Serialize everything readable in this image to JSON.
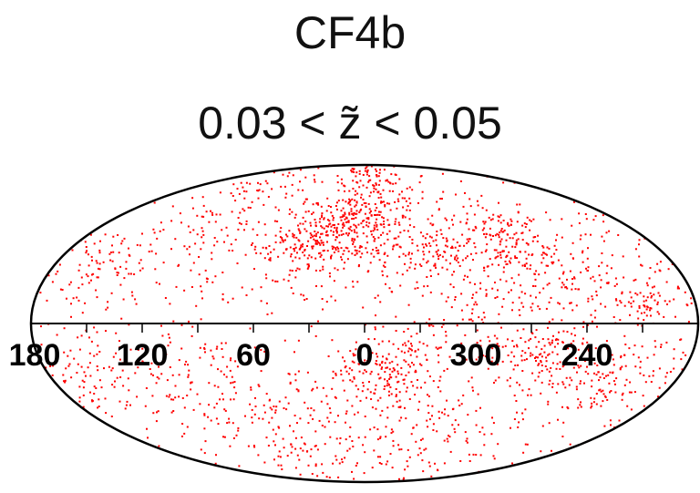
{
  "chart_data": {
    "type": "scatter",
    "projection": "mollweide",
    "title": "CF4b",
    "subtitle": "0.03 < z̃ < 0.05",
    "xlabel": "",
    "ylabel": "",
    "x_ticks": [
      "180",
      "120",
      "60",
      "0",
      "300",
      "240"
    ],
    "x_tick_values": [
      180,
      120,
      60,
      0,
      300,
      240
    ],
    "lon_range": [
      -180,
      180
    ],
    "lat_range": [
      -90,
      90
    ],
    "grid": false,
    "marker_color": "#ff0000",
    "clusters": [
      {
        "lon": 10,
        "lat": 45,
        "spread": 14,
        "count": 260
      },
      {
        "lon": 40,
        "lat": 35,
        "spread": 12,
        "count": 120
      },
      {
        "lon": -10,
        "lat": 65,
        "spread": 18,
        "count": 140
      },
      {
        "lon": -45,
        "lat": 30,
        "spread": 10,
        "count": 90
      },
      {
        "lon": -90,
        "lat": 40,
        "spread": 14,
        "count": 130
      },
      {
        "lon": -120,
        "lat": 20,
        "spread": 18,
        "count": 120
      },
      {
        "lon": -150,
        "lat": 8,
        "spread": 8,
        "count": 60
      },
      {
        "lon": 150,
        "lat": 25,
        "spread": 12,
        "count": 70
      },
      {
        "lon": 100,
        "lat": 50,
        "spread": 16,
        "count": 60
      },
      {
        "lon": -60,
        "lat": 5,
        "spread": 10,
        "count": 50
      },
      {
        "lon": -10,
        "lat": -25,
        "spread": 10,
        "count": 110
      },
      {
        "lon": -25,
        "lat": -10,
        "spread": 12,
        "count": 60
      },
      {
        "lon": -100,
        "lat": -15,
        "spread": 12,
        "count": 130
      },
      {
        "lon": -140,
        "lat": -25,
        "spread": 14,
        "count": 90
      },
      {
        "lon": 90,
        "lat": -30,
        "spread": 20,
        "count": 90
      },
      {
        "lon": 150,
        "lat": -20,
        "spread": 15,
        "count": 70
      },
      {
        "lon": 40,
        "lat": -50,
        "spread": 25,
        "count": 90
      },
      {
        "lon": -50,
        "lat": -55,
        "spread": 20,
        "count": 70
      }
    ],
    "background_count": 900
  }
}
